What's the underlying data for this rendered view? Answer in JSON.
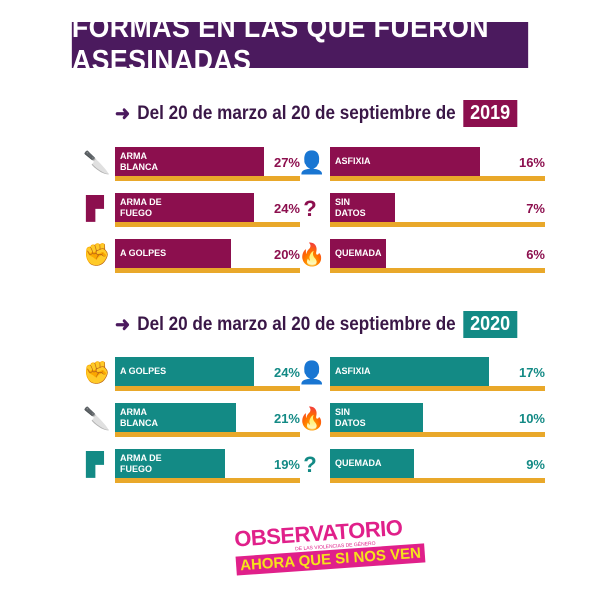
{
  "title": "FORMAS EN LAS QUE FUERON ASESINADAS",
  "chart_data": [
    {
      "type": "bar",
      "period": "Del 20 de marzo al 20 de septiembre de",
      "year": "2019",
      "color": "#8c0f4e",
      "track_color": "#e9a82a",
      "categories": [
        {
          "label": "ARMA\nBLANCA",
          "value": 27,
          "pct": "27%",
          "icon": "knife-icon"
        },
        {
          "label": "ARMA DE\nFUEGO",
          "value": 24,
          "pct": "24%",
          "icon": "gun-icon"
        },
        {
          "label": "A GOLPES",
          "value": 20,
          "pct": "20%",
          "icon": "fist-icon"
        },
        {
          "label": "ASFIXIA",
          "value": 16,
          "pct": "16%",
          "icon": "asphyxia-icon"
        },
        {
          "label": "SIN\nDATOS",
          "value": 7,
          "pct": "7%",
          "icon": "question-icon"
        },
        {
          "label": "QUEMADA",
          "value": 6,
          "pct": "6%",
          "icon": "flame-icon"
        }
      ]
    },
    {
      "type": "bar",
      "period": "Del 20 de marzo al 20 de septiembre de",
      "year": "2020",
      "color": "#138a85",
      "track_color": "#e9a82a",
      "categories": [
        {
          "label": "A GOLPES",
          "value": 24,
          "pct": "24%",
          "icon": "fist-icon"
        },
        {
          "label": "ARMA\nBLANCA",
          "value": 21,
          "pct": "21%",
          "icon": "knife-icon"
        },
        {
          "label": "ARMA DE\nFUEGO",
          "value": 19,
          "pct": "19%",
          "icon": "gun-icon"
        },
        {
          "label": "ASFIXIA",
          "value": 17,
          "pct": "17%",
          "icon": "asphyxia-icon"
        },
        {
          "label": "SIN\nDATOS",
          "value": 10,
          "pct": "10%",
          "icon": "flame-icon"
        },
        {
          "label": "QUEMADA",
          "value": 9,
          "pct": "9%",
          "icon": "question-icon"
        }
      ]
    }
  ],
  "logo": {
    "line1": "OBSERVATORIO",
    "small": "DE LAS VIOLENCIAS DE GÉNERO",
    "line2": "AHORA QUE SI NOS VEN"
  }
}
